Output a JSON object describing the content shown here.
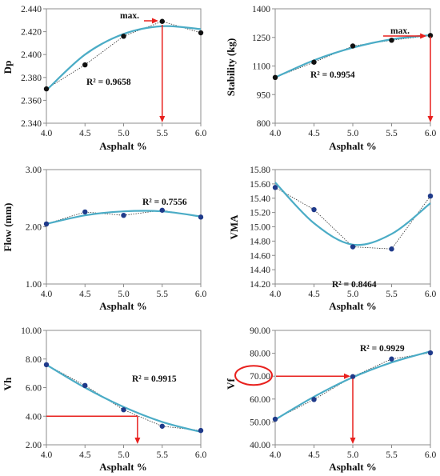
{
  "chart_data": [
    {
      "type": "scatter",
      "ylabel": "Dp",
      "xlabel": "Asphalt %",
      "x": [
        4.0,
        4.5,
        5.0,
        5.5,
        6.0
      ],
      "y": [
        2.37,
        2.391,
        2.416,
        2.429,
        2.419
      ],
      "fit": [
        2.3688,
        2.4,
        2.418,
        2.4248,
        2.4222
      ],
      "r2": "R² = 0.9658",
      "xlim": [
        4.0,
        6.0
      ],
      "ylim": [
        2.34,
        2.44
      ],
      "yticks": [
        "2.340",
        "2.360",
        "2.380",
        "2.400",
        "2.420",
        "2.440"
      ],
      "xticks": [
        "4.0",
        "4.5",
        "5.0",
        "5.5",
        "6.0"
      ],
      "annotation": {
        "text": "max.",
        "x": 5.5,
        "y": 2.429
      },
      "point_color": "#111111",
      "fit_color": "#4bacc6",
      "arrow_color": "#e8211e"
    },
    {
      "type": "scatter",
      "ylabel": "Stability (kg)",
      "xlabel": "Asphalt %",
      "x": [
        4.0,
        4.5,
        5.0,
        5.5,
        6.0
      ],
      "y": [
        1040,
        1120,
        1205,
        1235,
        1260
      ],
      "fit": [
        1040,
        1130,
        1196,
        1240,
        1262
      ],
      "r2": "R² = 0.9954",
      "xlim": [
        4.0,
        6.0
      ],
      "ylim": [
        800,
        1400
      ],
      "yticks": [
        "800",
        "950",
        "1100",
        "1250",
        "1400"
      ],
      "xticks": [
        "4.0",
        "4.5",
        "5.0",
        "5.5",
        "6.0"
      ],
      "annotation": {
        "text": "max.",
        "x": 6.0,
        "y": 1260
      },
      "point_color": "#111111",
      "fit_color": "#4bacc6",
      "arrow_color": "#e8211e"
    },
    {
      "type": "scatter",
      "ylabel": "Flow (mm)",
      "xlabel": "Asphalt %",
      "x": [
        4.0,
        4.5,
        5.0,
        5.5,
        6.0
      ],
      "y": [
        2.05,
        2.26,
        2.2,
        2.29,
        2.17
      ],
      "fit": [
        2.05,
        2.2,
        2.27,
        2.27,
        2.18
      ],
      "r2": "R² = 0.7556",
      "xlim": [
        4.0,
        6.0
      ],
      "ylim": [
        1.0,
        3.0
      ],
      "yticks": [
        "1.00",
        "2.00",
        "3.00"
      ],
      "xticks": [
        "4.0",
        "4.5",
        "5.0",
        "5.5",
        "6.0"
      ],
      "point_color": "#1f3a8a",
      "fit_color": "#4bacc6"
    },
    {
      "type": "scatter",
      "ylabel": "VMA",
      "xlabel": "Asphalt %",
      "x": [
        4.0,
        4.5,
        5.0,
        5.5,
        6.0
      ],
      "y": [
        15.55,
        15.24,
        14.72,
        14.69,
        15.43
      ],
      "fit": [
        15.62,
        15.05,
        14.75,
        14.9,
        15.33
      ],
      "r2": "R² = 0.8464",
      "xlim": [
        4.0,
        6.0
      ],
      "ylim": [
        14.2,
        15.8
      ],
      "yticks": [
        "14.20",
        "14.40",
        "14.60",
        "14.80",
        "15.00",
        "15.20",
        "15.40",
        "15.60",
        "15.80"
      ],
      "xticks": [
        "4.0",
        "4.5",
        "5.0",
        "5.5",
        "6.0"
      ],
      "point_color": "#1f3a8a",
      "fit_color": "#4bacc6"
    },
    {
      "type": "scatter",
      "ylabel": "Vh",
      "xlabel": "Asphalt %",
      "x": [
        4.0,
        4.5,
        5.0,
        5.5,
        6.0
      ],
      "y": [
        7.6,
        6.15,
        4.45,
        3.3,
        3.0
      ],
      "fit": [
        7.6,
        6.0,
        4.65,
        3.6,
        2.9
      ],
      "r2": "R² = 0.9915",
      "xlim": [
        4.0,
        6.0
      ],
      "ylim": [
        2.0,
        10.0
      ],
      "yticks": [
        "2.00",
        "4.00",
        "6.00",
        "8.00",
        "10.00"
      ],
      "xticks": [
        "4.0",
        "4.5",
        "5.0",
        "5.5",
        "6.0"
      ],
      "reference": {
        "y": 4.0,
        "x": 5.18
      },
      "point_color": "#1f3a8a",
      "fit_color": "#4bacc6",
      "arrow_color": "#e8211e"
    },
    {
      "type": "scatter",
      "ylabel": "Vf",
      "xlabel": "Asphalt %",
      "x": [
        4.0,
        4.5,
        5.0,
        5.5,
        6.0
      ],
      "y": [
        51.2,
        59.8,
        69.8,
        77.5,
        80.2
      ],
      "fit": [
        51.0,
        61.0,
        69.5,
        76.0,
        80.8
      ],
      "r2": "R² = 0.9929",
      "xlim": [
        4.0,
        6.0
      ],
      "ylim": [
        40.0,
        90.0
      ],
      "yticks": [
        "40.00",
        "50.00",
        "60.00",
        "70.00",
        "80.00",
        "90.00"
      ],
      "xticks": [
        "4.0",
        "4.5",
        "5.0",
        "5.5",
        "6.0"
      ],
      "reference": {
        "y": 70.0,
        "x": 5.0
      },
      "highlight_tick": "70.00",
      "point_color": "#1f3a8a",
      "fit_color": "#4bacc6",
      "arrow_color": "#e8211e"
    }
  ]
}
